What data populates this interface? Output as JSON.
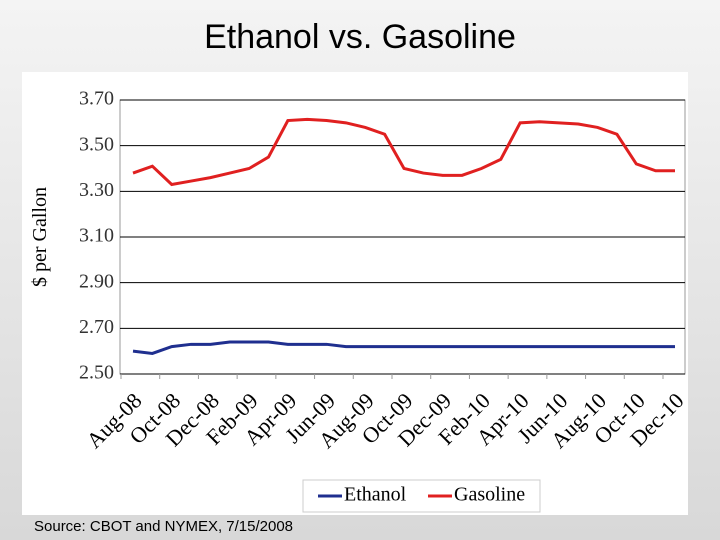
{
  "title": "Ethanol vs. Gasoline",
  "source": "Source:  CBOT and NYMEX, 7/15/2008",
  "chart_data": {
    "type": "line",
    "y_label": "$ per Gallon",
    "categories": [
      "Aug-08",
      null,
      "Oct-08",
      null,
      "Dec-08",
      null,
      "Feb-09",
      null,
      "Apr-09",
      null,
      "Jun-09",
      null,
      "Aug-09",
      null,
      "Oct-09",
      null,
      "Dec-09",
      null,
      "Feb-10",
      null,
      "Apr-10",
      null,
      "Jun-10",
      null,
      "Aug-10",
      null,
      "Oct-10",
      null,
      "Dec-10"
    ],
    "series": [
      {
        "name": "Ethanol",
        "color": "#1f2f8f",
        "values": [
          2.6,
          2.59,
          2.62,
          2.63,
          2.63,
          2.64,
          2.64,
          2.64,
          2.63,
          2.63,
          2.63,
          2.62,
          2.62,
          2.62,
          2.62,
          2.62,
          2.62,
          2.62,
          2.62,
          2.62,
          2.62,
          2.62,
          2.62,
          2.62,
          2.62,
          2.62,
          2.62,
          2.62,
          2.62
        ]
      },
      {
        "name": "Gasoline",
        "color": "#e02020",
        "values": [
          3.38,
          3.41,
          3.33,
          3.345,
          3.36,
          3.38,
          3.4,
          3.45,
          3.61,
          3.615,
          3.61,
          3.6,
          3.58,
          3.55,
          3.4,
          3.38,
          3.37,
          3.37,
          3.4,
          3.44,
          3.6,
          3.605,
          3.6,
          3.595,
          3.58,
          3.55,
          3.42,
          3.39,
          3.39
        ]
      }
    ],
    "ylim": [
      2.5,
      3.7
    ],
    "yticks": [
      {
        "value": 2.5,
        "label": "2.50"
      },
      {
        "value": 2.7,
        "label": "2.70"
      },
      {
        "value": 2.9,
        "label": "2.90"
      },
      {
        "value": 3.1,
        "label": "3.10"
      },
      {
        "value": 3.3,
        "label": "3.30"
      },
      {
        "value": 3.5,
        "label": "3.50"
      },
      {
        "value": 3.7,
        "label": "3.70"
      }
    ],
    "grid": true,
    "legend": "bottom"
  }
}
